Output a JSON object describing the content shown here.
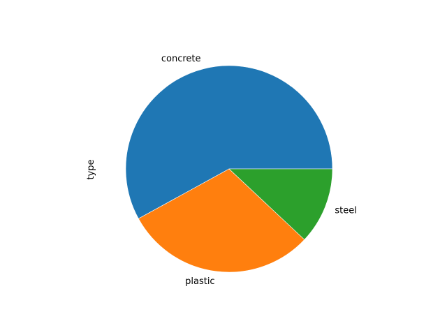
{
  "chart_data": {
    "type": "pie",
    "ylabel": "type",
    "categories": [
      "concrete",
      "plastic",
      "steel"
    ],
    "values": [
      58,
      30,
      12
    ],
    "colors": [
      "#1f77b4",
      "#ff7f0e",
      "#2ca02c"
    ],
    "start_angle_deg": 0,
    "direction": "counterclockwise"
  }
}
